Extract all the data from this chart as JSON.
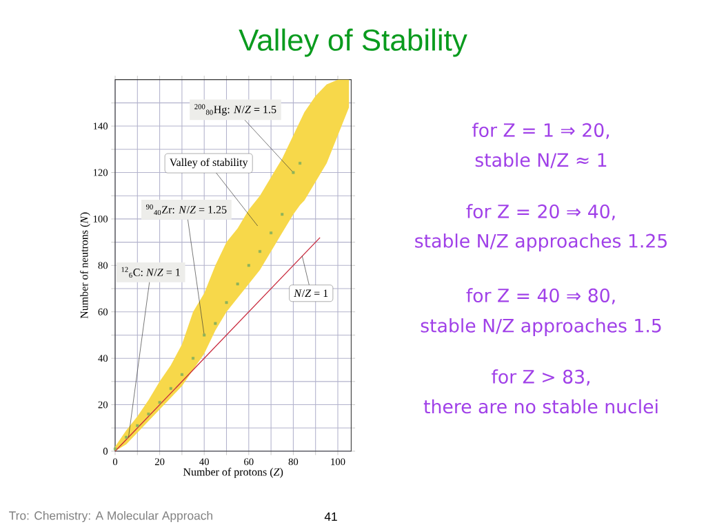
{
  "chart_data": {
    "type": "scatter",
    "title": "Valley of Stability",
    "xlabel": "Number of protons (*Z*)",
    "ylabel": "Number of neutrons (*N*)",
    "xlim": [
      0,
      106
    ],
    "ylim": [
      0,
      160
    ],
    "xticks": [
      0,
      {
        "value": 10,
        "label": null
      },
      20,
      {
        "value": 30,
        "label": null
      },
      40,
      {
        "value": 50,
        "label": null
      },
      60,
      {
        "value": 70,
        "label": null
      },
      80,
      {
        "value": 90,
        "label": null
      },
      100
    ],
    "yticks": [
      0,
      {
        "value": 10,
        "label": null
      },
      20,
      {
        "value": 30,
        "label": null
      },
      40,
      {
        "value": 50,
        "label": null
      },
      60,
      {
        "value": 70,
        "label": null
      },
      80,
      {
        "value": 90,
        "label": null
      },
      100,
      {
        "value": 110,
        "label": null
      },
      120,
      {
        "value": 130,
        "label": null
      },
      140,
      {
        "value": 150,
        "label": null
      }
    ],
    "grid": true,
    "series": [
      {
        "color": "#8db35a",
        "marker": "square",
        "x": [
          0,
          5,
          10,
          15,
          20,
          25,
          30,
          35,
          40,
          45,
          50,
          55,
          60,
          65,
          70,
          75,
          80,
          83,
          85,
          90,
          95,
          100,
          105
        ],
        "values": [
          1,
          6,
          11,
          16,
          21,
          27,
          33,
          40,
          50,
          55,
          64,
          72,
          80,
          86,
          94,
          102,
          120,
          124,
          null,
          null,
          null,
          null,
          null
        ],
        "lower": [
          0,
          3,
          8,
          13,
          18,
          23,
          28,
          35,
          42,
          52,
          60,
          66,
          72,
          78,
          86,
          94,
          102,
          106,
          108,
          116,
          124,
          136,
          148
        ],
        "upper": [
          2,
          9,
          15,
          22,
          30,
          37,
          46,
          60,
          68,
          80,
          90,
          96,
          104,
          110,
          118,
          126,
          136,
          142,
          146,
          153,
          158,
          160,
          160
        ]
      },
      {
        "type": "line",
        "color": "#c8283c",
        "x": [
          0,
          92
        ],
        "values": [
          0,
          92
        ]
      }
    ],
    "annotations": [
      "for Z = 1 ⇒ 20,",
      "stable N/Z ≈ 1",
      "for Z = 20 ⇒ 40,",
      "stable N/Z approaches 1.25",
      "for Z = 40 ⇒ 80,",
      "stable N/Z approaches 1.5",
      "for Z > 83,",
      "there are no stable nuclei",
      "Tro: Chemistry: A Molecular Approach",
      "41",
      {
        "text": "$^{200}$$_{80}$Hg: *N*/*Z* = 1.5",
        "x": 80,
        "y": 120
      },
      "Valley of stability",
      {
        "text": "$^{90}$$_{40}$Zr: *N*/*Z* = 1.25",
        "x": 40,
        "y": 50
      },
      {
        "text": "$^{12}$$_{6}$C: *N*/*Z* = 1",
        "x": 6,
        "y": 6
      },
      {
        "text": "*N*/*Z* = 1",
        "x": 84,
        "y": 84
      }
    ]
  }
}
